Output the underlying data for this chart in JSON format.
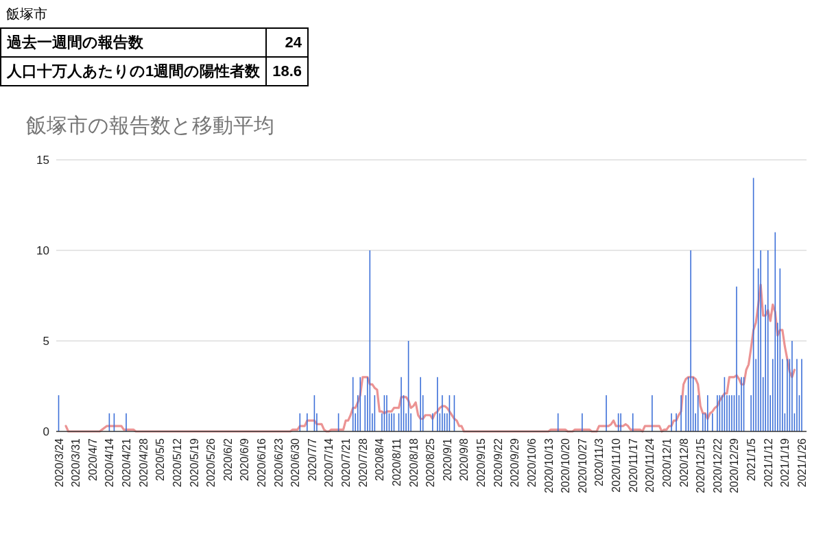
{
  "chart_data": {
    "type": "bar",
    "title": "飯塚市の報告数と移動平均",
    "annotations": [
      "飯塚市",
      "過去一週間の報告数",
      "24",
      "人口十万人あたりの1週間の陽性者数",
      "18.6"
    ],
    "xlim": [
      "2020-03-23",
      "2021-01-28"
    ],
    "xticks": [
      {
        "value": "2020-03-24",
        "label": "2020/3/24"
      },
      {
        "value": "2020-03-31",
        "label": "2020/3/31"
      },
      {
        "value": "2020-04-07",
        "label": "2020/4/7"
      },
      {
        "value": "2020-04-14",
        "label": "2020/4/14"
      },
      {
        "value": "2020-04-21",
        "label": "2020/4/21"
      },
      {
        "value": "2020-04-28",
        "label": "2020/4/28"
      },
      {
        "value": "2020-05-05",
        "label": "2020/5/5"
      },
      {
        "value": "2020-05-12",
        "label": "2020/5/12"
      },
      {
        "value": "2020-05-19",
        "label": "2020/5/19"
      },
      {
        "value": "2020-05-26",
        "label": "2020/5/26"
      },
      {
        "value": "2020-06-02",
        "label": "2020/6/2"
      },
      {
        "value": "2020-06-09",
        "label": "2020/6/9"
      },
      {
        "value": "2020-06-16",
        "label": "2020/6/16"
      },
      {
        "value": "2020-06-23",
        "label": "2020/6/23"
      },
      {
        "value": "2020-06-30",
        "label": "2020/6/30"
      },
      {
        "value": "2020-07-07",
        "label": "2020/7/7"
      },
      {
        "value": "2020-07-14",
        "label": "2020/7/14"
      },
      {
        "value": "2020-07-21",
        "label": "2020/7/21"
      },
      {
        "value": "2020-07-28",
        "label": "2020/7/28"
      },
      {
        "value": "2020-08-04",
        "label": "2020/8/4"
      },
      {
        "value": "2020-08-11",
        "label": "2020/8/11"
      },
      {
        "value": "2020-08-18",
        "label": "2020/8/18"
      },
      {
        "value": "2020-08-25",
        "label": "2020/8/25"
      },
      {
        "value": "2020-09-01",
        "label": "2020/9/1"
      },
      {
        "value": "2020-09-08",
        "label": "2020/9/8"
      },
      {
        "value": "2020-09-15",
        "label": "2020/9/15"
      },
      {
        "value": "2020-09-22",
        "label": "2020/9/22"
      },
      {
        "value": "2020-09-29",
        "label": "2020/9/29"
      },
      {
        "value": "2020-10-06",
        "label": "2020/10/6"
      },
      {
        "value": "2020-10-13",
        "label": "2020/10/13"
      },
      {
        "value": "2020-10-20",
        "label": "2020/10/20"
      },
      {
        "value": "2020-10-27",
        "label": "2020/10/27"
      },
      {
        "value": "2020-11-03",
        "label": "2020/11/3"
      },
      {
        "value": "2020-11-10",
        "label": "2020/11/10"
      },
      {
        "value": "2020-11-17",
        "label": "2020/11/17"
      },
      {
        "value": "2020-11-24",
        "label": "2020/11/24"
      },
      {
        "value": "2020-12-01",
        "label": "2020/12/1"
      },
      {
        "value": "2020-12-08",
        "label": "2020/12/8"
      },
      {
        "value": "2020-12-15",
        "label": "2020/12/15"
      },
      {
        "value": "2020-12-22",
        "label": "2020/12/22"
      },
      {
        "value": "2020-12-29",
        "label": "2020/12/29"
      },
      {
        "value": "2021-01-05",
        "label": "2021/1/5"
      },
      {
        "value": "2021-01-12",
        "label": "2021/1/12"
      },
      {
        "value": "2021-01-19",
        "label": "2021/1/19"
      },
      {
        "value": "2021-01-26",
        "label": "2021/1/26"
      }
    ],
    "ylim": [
      0,
      15
    ],
    "yticks": [
      0,
      5,
      10,
      15
    ],
    "grid": "y",
    "series": [
      {
        "type": "bar",
        "color": "#3c6fd8",
        "x": [
          "2020-03-24",
          "2020-04-14",
          "2020-04-16",
          "2020-04-21",
          "2020-07-02",
          "2020-07-05",
          "2020-07-08",
          "2020-07-09",
          "2020-07-18",
          "2020-07-24",
          "2020-07-25",
          "2020-07-26",
          "2020-07-27",
          "2020-07-29",
          "2020-07-30",
          "2020-07-31",
          "2020-08-01",
          "2020-08-02",
          "2020-08-05",
          "2020-08-06",
          "2020-08-07",
          "2020-08-08",
          "2020-08-09",
          "2020-08-10",
          "2020-08-12",
          "2020-08-13",
          "2020-08-14",
          "2020-08-15",
          "2020-08-16",
          "2020-08-17",
          "2020-08-21",
          "2020-08-22",
          "2020-08-26",
          "2020-08-28",
          "2020-08-29",
          "2020-08-30",
          "2020-08-31",
          "2020-09-01",
          "2020-09-02",
          "2020-09-04",
          "2020-10-17",
          "2020-10-27",
          "2020-11-06",
          "2020-11-11",
          "2020-11-12",
          "2020-11-17",
          "2020-11-25",
          "2020-12-03",
          "2020-12-05",
          "2020-12-07",
          "2020-12-09",
          "2020-12-10",
          "2020-12-11",
          "2020-12-12",
          "2020-12-13",
          "2020-12-14",
          "2020-12-16",
          "2020-12-17",
          "2020-12-18",
          "2020-12-20",
          "2020-12-22",
          "2020-12-23",
          "2020-12-24",
          "2020-12-25",
          "2020-12-26",
          "2020-12-27",
          "2020-12-28",
          "2020-12-29",
          "2020-12-30",
          "2020-12-31",
          "2021-01-01",
          "2021-01-02",
          "2021-01-05",
          "2021-01-06",
          "2021-01-07",
          "2021-01-08",
          "2021-01-09",
          "2021-01-10",
          "2021-01-11",
          "2021-01-12",
          "2021-01-13",
          "2021-01-14",
          "2021-01-15",
          "2021-01-16",
          "2021-01-17",
          "2021-01-18",
          "2021-01-19",
          "2021-01-20",
          "2021-01-21",
          "2021-01-22",
          "2021-01-23",
          "2021-01-24",
          "2021-01-25",
          "2021-01-26"
        ],
        "values": [
          2,
          1,
          1,
          1,
          1,
          1,
          2,
          1,
          1,
          3,
          1,
          2,
          3,
          2,
          3,
          10,
          1,
          2,
          1,
          2,
          2,
          1,
          1,
          1,
          1,
          3,
          2,
          1,
          5,
          1,
          3,
          2,
          1,
          3,
          1,
          2,
          1,
          1,
          2,
          2,
          1,
          1,
          2,
          1,
          1,
          1,
          2,
          1,
          1,
          2,
          2,
          3,
          10,
          3,
          1,
          2,
          1,
          1,
          2,
          1,
          2,
          2,
          2,
          3,
          2,
          2,
          2,
          2,
          8,
          2,
          3,
          3,
          2,
          14,
          4,
          9,
          10,
          3,
          7,
          10,
          2,
          4,
          11,
          6,
          9,
          4,
          1,
          4,
          4,
          5,
          1,
          4,
          2,
          4
        ]
      },
      {
        "type": "line",
        "color": "#eb9393",
        "x": [
          "2020-03-27",
          "2020-03-28",
          "2020-04-10",
          "2020-04-11",
          "2020-04-13",
          "2020-04-19",
          "2020-04-20",
          "2020-04-24",
          "2020-04-25",
          "2020-06-28",
          "2020-06-29",
          "2020-07-01",
          "2020-07-02",
          "2020-07-04",
          "2020-07-05",
          "2020-07-08",
          "2020-07-09",
          "2020-07-11",
          "2020-07-12",
          "2020-07-13",
          "2020-07-14",
          "2020-07-15",
          "2020-07-20",
          "2020-07-21",
          "2020-07-22",
          "2020-07-23",
          "2020-07-24",
          "2020-07-25",
          "2020-07-26",
          "2020-07-27",
          "2020-07-28",
          "2020-07-30",
          "2020-07-31",
          "2020-08-01",
          "2020-08-02",
          "2020-08-03",
          "2020-08-04",
          "2020-08-05",
          "2020-08-06",
          "2020-08-07",
          "2020-08-09",
          "2020-08-10",
          "2020-08-12",
          "2020-08-13",
          "2020-08-15",
          "2020-08-16",
          "2020-08-17",
          "2020-08-18",
          "2020-08-19",
          "2020-08-20",
          "2020-08-21",
          "2020-08-22",
          "2020-08-23",
          "2020-08-25",
          "2020-08-26",
          "2020-08-27",
          "2020-08-28",
          "2020-08-29",
          "2020-08-30",
          "2020-08-31",
          "2020-09-01",
          "2020-09-02",
          "2020-09-03",
          "2020-09-04",
          "2020-09-05",
          "2020-09-06",
          "2020-09-07",
          "2020-09-08",
          "2020-10-13",
          "2020-10-14",
          "2020-10-20",
          "2020-10-21",
          "2020-10-23",
          "2020-10-24",
          "2020-10-30",
          "2020-10-31",
          "2020-11-02",
          "2020-11-03",
          "2020-11-07",
          "2020-11-08",
          "2020-11-09",
          "2020-11-10",
          "2020-11-13",
          "2020-11-14",
          "2020-11-15",
          "2020-11-16",
          "2020-11-20",
          "2020-11-21",
          "2020-11-22",
          "2020-11-28",
          "2020-11-29",
          "2020-11-30",
          "2020-12-01",
          "2020-12-02",
          "2020-12-03",
          "2020-12-04",
          "2020-12-05",
          "2020-12-06",
          "2020-12-07",
          "2020-12-08",
          "2020-12-09",
          "2020-12-10",
          "2020-12-12",
          "2020-12-13",
          "2020-12-14",
          "2020-12-15",
          "2020-12-16",
          "2020-12-17",
          "2020-12-18",
          "2020-12-19",
          "2020-12-20",
          "2020-12-21",
          "2020-12-22",
          "2020-12-23",
          "2020-12-24",
          "2020-12-25",
          "2020-12-26",
          "2020-12-27",
          "2020-12-29",
          "2020-12-30",
          "2020-12-31",
          "2021-01-01",
          "2021-01-02",
          "2021-01-03",
          "2021-01-04",
          "2021-01-05",
          "2021-01-06",
          "2021-01-07",
          "2021-01-08",
          "2021-01-09",
          "2021-01-10",
          "2021-01-11",
          "2021-01-12",
          "2021-01-13",
          "2021-01-14",
          "2021-01-15",
          "2021-01-16",
          "2021-01-17",
          "2021-01-18",
          "2021-01-19",
          "2021-01-20",
          "2021-01-21",
          "2021-01-22",
          "2021-01-23"
        ],
        "values": [
          0.3,
          0,
          0,
          0.1,
          0.3,
          0.3,
          0.1,
          0.1,
          0,
          0,
          0.1,
          0.1,
          0.3,
          0.3,
          0.6,
          0.6,
          0.4,
          0.4,
          0.1,
          0,
          0,
          0.1,
          0.1,
          0.6,
          0.6,
          0.9,
          1.3,
          1.3,
          1.6,
          2.0,
          3.0,
          3.0,
          2.6,
          2.6,
          2.4,
          2.3,
          1.1,
          1.1,
          1.0,
          1.1,
          1.1,
          1.3,
          1.3,
          1.9,
          1.9,
          1.7,
          1.3,
          1.4,
          1.6,
          0.9,
          0.7,
          0.7,
          0.9,
          0.9,
          0.7,
          1.0,
          1.1,
          1.3,
          1.4,
          1.4,
          1.3,
          1.1,
          0.9,
          0.7,
          0.6,
          0.3,
          0.3,
          0,
          0,
          0.1,
          0.1,
          0,
          0,
          0.1,
          0.1,
          0,
          0,
          0.3,
          0.3,
          0.4,
          0.6,
          0.3,
          0.3,
          0.4,
          0.3,
          0.1,
          0.1,
          0,
          0.3,
          0.3,
          0,
          0.1,
          0.1,
          0.3,
          0.3,
          0.6,
          0.6,
          0.9,
          1.1,
          2.6,
          2.9,
          3.0,
          3.0,
          2.9,
          2.6,
          1.4,
          1.0,
          1.0,
          0.7,
          1.0,
          1.1,
          1.3,
          1.4,
          1.7,
          1.9,
          2.1,
          2.1,
          3.0,
          3.0,
          3.1,
          2.9,
          2.6,
          2.6,
          3.4,
          3.7,
          4.6,
          5.6,
          6.0,
          7.0,
          8.1,
          6.4,
          6.4,
          6.7,
          6.1,
          7.0,
          6.6,
          5.3,
          5.6,
          5.6,
          4.7,
          4.0,
          3.3,
          3.0,
          3.4
        ]
      }
    ]
  }
}
